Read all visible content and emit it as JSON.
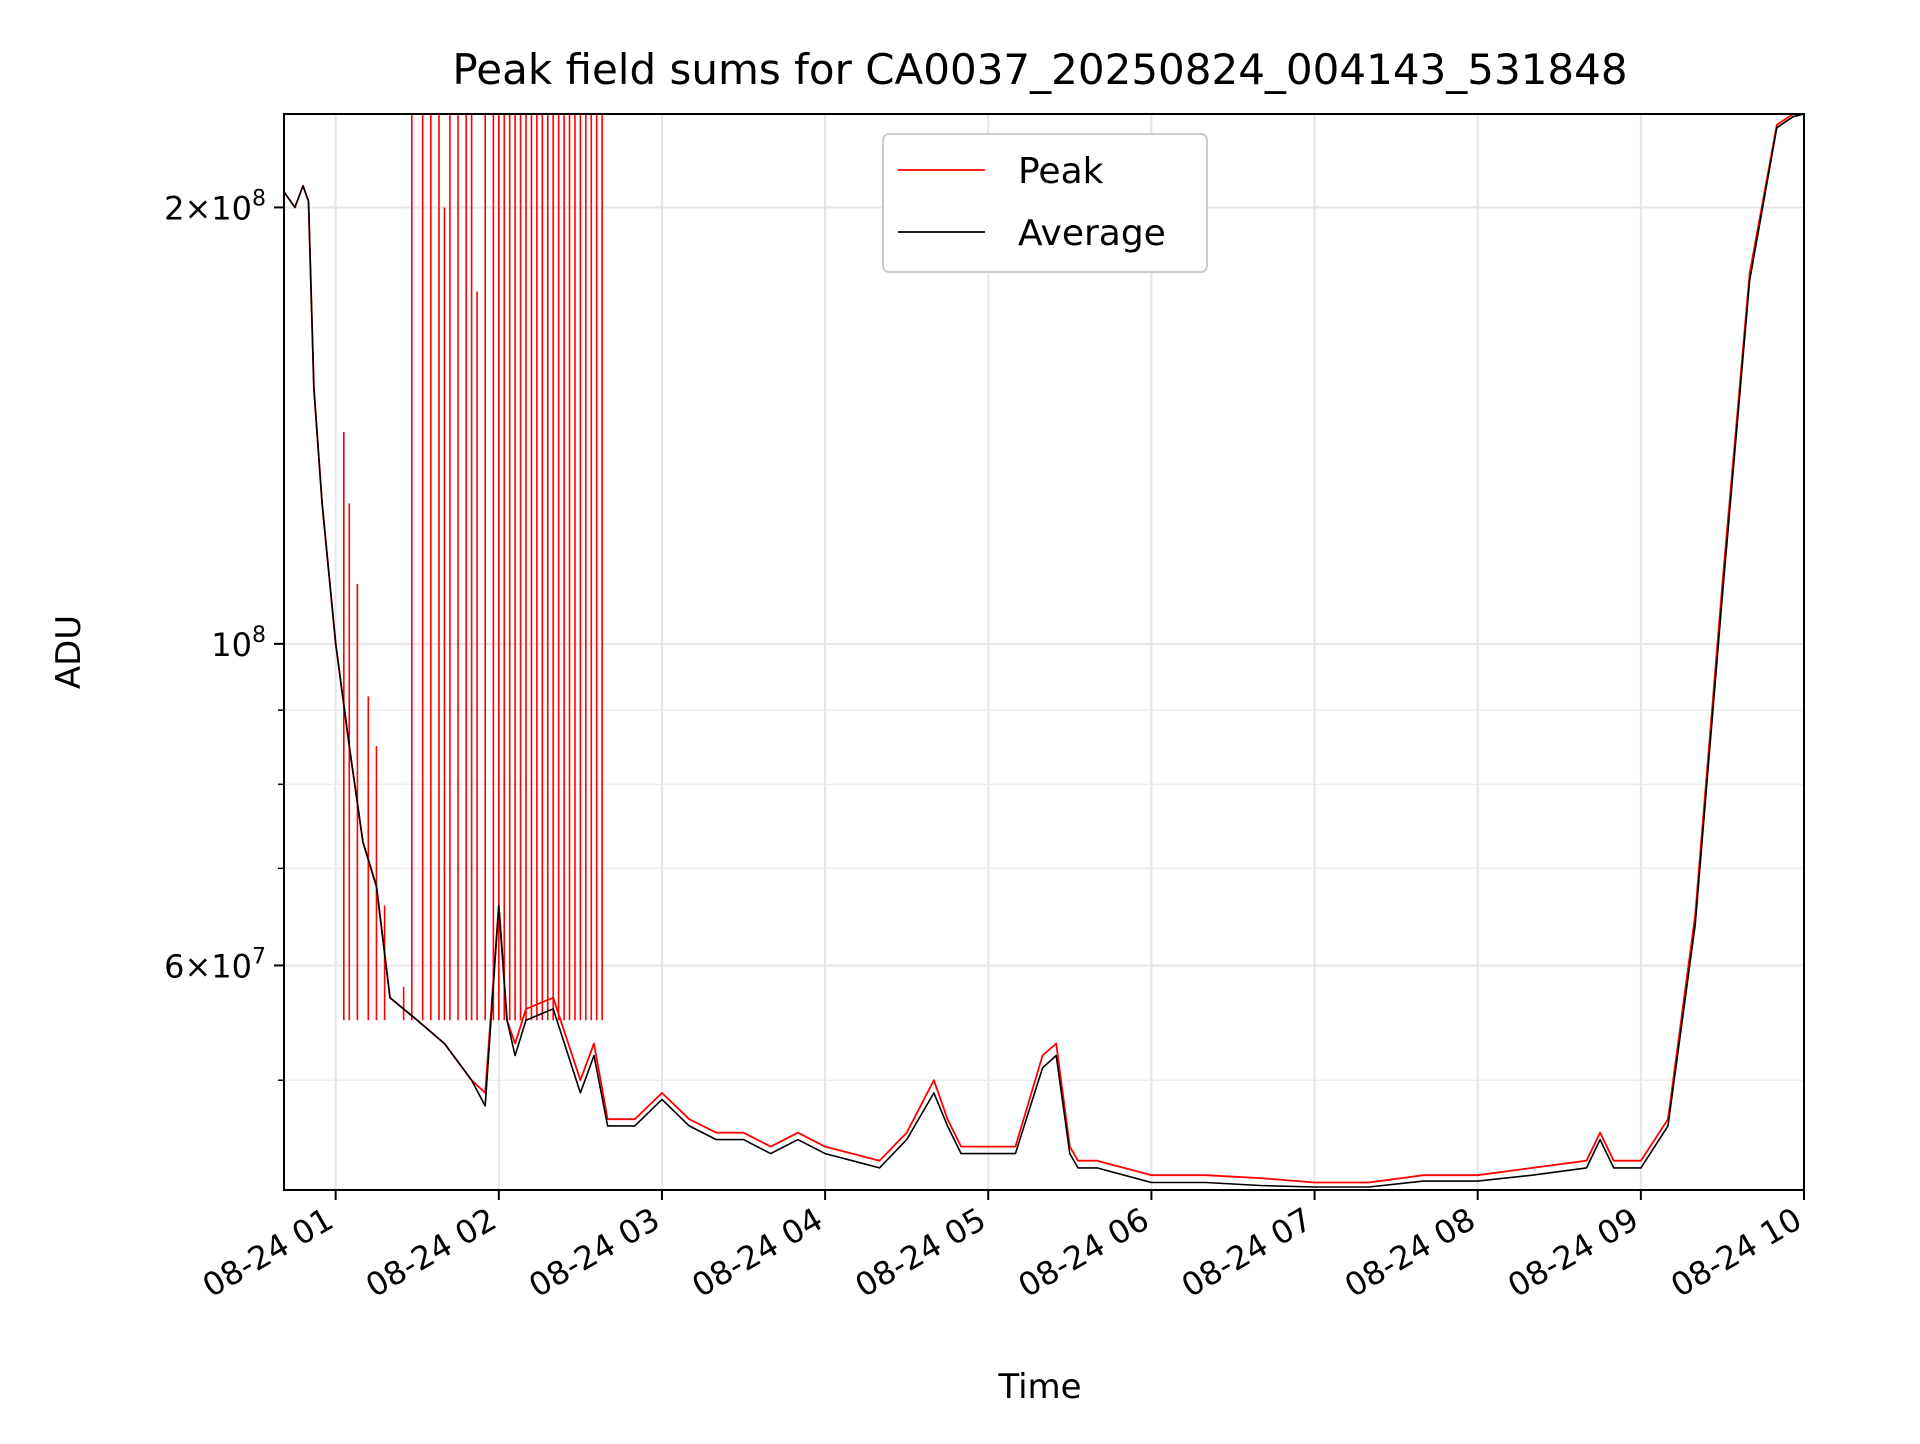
{
  "chart_data": {
    "type": "line",
    "title": "Peak field sums for CA0037_20250824_004143_531848",
    "xlabel": "Time",
    "ylabel": "ADU",
    "x_ticks": [
      "08-24 01",
      "08-24 02",
      "08-24 03",
      "08-24 04",
      "08-24 05",
      "08-24 06",
      "08-24 07",
      "08-24 08",
      "08-24 09",
      "08-24 10"
    ],
    "y_ticks": [
      {
        "value": 200000000,
        "base": "2",
        "exp": "8"
      },
      {
        "value": 100000000,
        "base": "10",
        "exp": "8"
      },
      {
        "value": 60000000,
        "base": "6",
        "exp": "7"
      }
    ],
    "y_scale": "log",
    "ylim": [
      42000000,
      232000000
    ],
    "xlim": [
      "2025-08-24 00:41",
      "2025-08-24 10:00"
    ],
    "grid": true,
    "legend_position": "upper center",
    "series": [
      {
        "name": "Peak",
        "color": "#ff0000",
        "x": [
          "00:41",
          "00:45",
          "00:48",
          "00:50",
          "00:52",
          "00:55",
          "01:00",
          "01:05",
          "01:10",
          "01:15",
          "01:20",
          "01:30",
          "01:40",
          "01:50",
          "01:55",
          "02:00",
          "02:03",
          "02:06",
          "02:10",
          "02:20",
          "02:30",
          "02:35",
          "02:40",
          "02:45",
          "02:50",
          "03:00",
          "03:10",
          "03:20",
          "03:30",
          "03:40",
          "03:50",
          "04:00",
          "04:10",
          "04:20",
          "04:30",
          "04:40",
          "04:45",
          "04:50",
          "05:00",
          "05:10",
          "05:20",
          "05:25",
          "05:30",
          "05:33",
          "05:40",
          "06:00",
          "06:20",
          "06:40",
          "07:00",
          "07:20",
          "07:40",
          "08:00",
          "08:20",
          "08:40",
          "08:45",
          "08:50",
          "09:00",
          "09:10",
          "09:20",
          "09:30",
          "09:40",
          "09:50",
          "09:56",
          "10:00"
        ],
        "y": [
          205000000,
          200000000,
          207000000,
          202000000,
          150000000,
          125000000,
          100000000,
          85000000,
          73000000,
          68000000,
          57000000,
          55000000,
          53000000,
          50000000,
          49000000,
          66000000,
          55000000,
          53000000,
          56000000,
          57000000,
          50000000,
          53000000,
          47000000,
          47000000,
          47000000,
          49000000,
          47000000,
          46000000,
          46000000,
          45000000,
          46000000,
          45000000,
          44500000,
          44000000,
          46000000,
          50000000,
          47000000,
          45000000,
          45000000,
          45000000,
          52000000,
          53000000,
          45000000,
          44000000,
          44000000,
          43000000,
          43000000,
          42800000,
          42500000,
          42500000,
          43000000,
          43000000,
          43500000,
          44000000,
          46000000,
          44000000,
          44000000,
          47000000,
          65000000,
          110000000,
          180000000,
          228000000,
          232000000,
          232000000
        ]
      },
      {
        "name": "Average",
        "color": "#000000",
        "x": [
          "00:41",
          "00:45",
          "00:48",
          "00:50",
          "00:52",
          "00:55",
          "01:00",
          "01:05",
          "01:10",
          "01:15",
          "01:20",
          "01:30",
          "01:40",
          "01:50",
          "01:55",
          "02:00",
          "02:03",
          "02:06",
          "02:10",
          "02:20",
          "02:30",
          "02:35",
          "02:40",
          "02:45",
          "02:50",
          "03:00",
          "03:10",
          "03:20",
          "03:30",
          "03:40",
          "03:50",
          "04:00",
          "04:10",
          "04:20",
          "04:30",
          "04:40",
          "04:45",
          "04:50",
          "05:00",
          "05:10",
          "05:20",
          "05:25",
          "05:30",
          "05:33",
          "05:40",
          "06:00",
          "06:20",
          "06:40",
          "07:00",
          "07:20",
          "07:40",
          "08:00",
          "08:20",
          "08:40",
          "08:45",
          "08:50",
          "09:00",
          "09:10",
          "09:20",
          "09:30",
          "09:40",
          "09:50",
          "09:56",
          "10:00"
        ],
        "y": [
          205000000,
          200000000,
          207000000,
          202000000,
          150000000,
          125000000,
          100000000,
          85000000,
          73000000,
          68000000,
          57000000,
          55000000,
          53000000,
          50000000,
          48000000,
          66000000,
          55000000,
          52000000,
          55000000,
          56000000,
          49000000,
          52000000,
          46500000,
          46500000,
          46500000,
          48500000,
          46500000,
          45500000,
          45500000,
          44500000,
          45500000,
          44500000,
          44000000,
          43500000,
          45500000,
          49000000,
          46500000,
          44500000,
          44500000,
          44500000,
          51000000,
          52000000,
          44500000,
          43500000,
          43500000,
          42500000,
          42500000,
          42300000,
          42200000,
          42200000,
          42600000,
          42600000,
          43000000,
          43500000,
          45500000,
          43500000,
          43500000,
          46500000,
          64000000,
          108000000,
          178000000,
          227000000,
          231000000,
          232000000
        ]
      }
    ],
    "peak_spikes": {
      "x": [
        "01:03",
        "01:05",
        "01:08",
        "01:12",
        "01:15",
        "01:18",
        "01:25",
        "01:28",
        "01:32",
        "01:35",
        "01:38",
        "01:40",
        "01:42",
        "01:45",
        "01:48",
        "01:50",
        "01:52",
        "01:55",
        "01:58",
        "02:00",
        "02:02",
        "02:04",
        "02:06",
        "02:08",
        "02:10",
        "02:12",
        "02:14",
        "02:16",
        "02:18",
        "02:20",
        "02:22",
        "02:24",
        "02:26",
        "02:28",
        "02:30",
        "02:32",
        "02:34",
        "02:36",
        "02:38"
      ],
      "y": [
        140000000,
        125000000,
        110000000,
        92000000,
        85000000,
        66000000,
        58000000,
        232000000,
        232000000,
        232000000,
        232000000,
        200000000,
        232000000,
        232000000,
        232000000,
        232000000,
        175000000,
        232000000,
        232000000,
        232000000,
        232000000,
        232000000,
        232000000,
        232000000,
        232000000,
        232000000,
        232000000,
        232000000,
        232000000,
        232000000,
        232000000,
        232000000,
        232000000,
        232000000,
        232000000,
        232000000,
        232000000,
        232000000,
        232000000
      ]
    }
  }
}
